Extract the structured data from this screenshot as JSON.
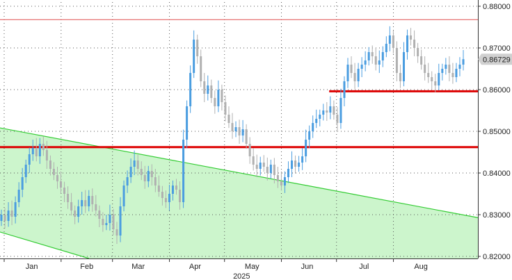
{
  "chart_data": {
    "type": "candlestick",
    "title": "",
    "xlabel": "2025",
    "ylabel": "",
    "ylim": [
      0.82,
      0.88
    ],
    "yticks": [
      "0.82000",
      "0.83000",
      "0.84000",
      "0.85000",
      "0.86000",
      "0.87000",
      "0.88000"
    ],
    "ytick_values": [
      0.82,
      0.83,
      0.84,
      0.85,
      0.86,
      0.87,
      0.88
    ],
    "month_labels": [
      "Jan",
      "Feb",
      "Mar",
      "Apr",
      "May",
      "Jun",
      "Jul",
      "Aug"
    ],
    "last_price": "0.86729",
    "last_price_value": 0.86729,
    "grid": true,
    "colors": {
      "up": "#4a9de0",
      "down": "#b0b0b0",
      "channel": "#33cc33",
      "channel_fill": "#ccf5cc",
      "resistance": "#e05050",
      "support": "#dd0000"
    },
    "levels": [
      {
        "kind": "thin-horizontal",
        "value": 0.8768
      },
      {
        "kind": "thick-horizontal",
        "value": 0.8462
      },
      {
        "kind": "thick-horizontal-partial",
        "value": 0.8596,
        "start_month": "Jun"
      }
    ],
    "channel": {
      "upper": [
        {
          "x": "2024-12-24",
          "y": 0.8513
        },
        {
          "x": "2025-09-05",
          "y": 0.8302
        }
      ],
      "lower": [
        {
          "x": "2024-12-24",
          "y": 0.8266
        },
        {
          "x": "2025-02-20",
          "y": 0.819
        }
      ]
    },
    "series": [
      {
        "values": [
          0.83,
          0.8285,
          0.831,
          0.8295,
          0.833,
          0.836,
          0.839,
          0.842,
          0.8445,
          0.846,
          0.844,
          0.847,
          0.8455,
          0.843,
          0.841,
          0.8395,
          0.838,
          0.8365,
          0.835,
          0.833,
          0.831,
          0.8295,
          0.832,
          0.8335,
          0.832,
          0.8345,
          0.8325,
          0.831,
          0.829,
          0.8275,
          0.828,
          0.83,
          0.8265,
          0.825,
          0.832,
          0.837,
          0.839,
          0.8415,
          0.843,
          0.841,
          0.8395,
          0.838,
          0.8405,
          0.839,
          0.837,
          0.8355,
          0.834,
          0.833,
          0.835,
          0.837,
          0.836,
          0.833,
          0.848,
          0.856,
          0.864,
          0.872,
          0.868,
          0.862,
          0.859,
          0.861,
          0.858,
          0.856,
          0.86,
          0.857,
          0.854,
          0.852,
          0.85,
          0.851,
          0.849,
          0.8505,
          0.847,
          0.844,
          0.842,
          0.841,
          0.8425,
          0.8415,
          0.84,
          0.842,
          0.8395,
          0.838,
          0.837,
          0.839,
          0.841,
          0.843,
          0.8415,
          0.8425,
          0.844,
          0.848,
          0.85,
          0.852,
          0.853,
          0.854,
          0.855,
          0.8545,
          0.856,
          0.854,
          0.852,
          0.858,
          0.862,
          0.866,
          0.864,
          0.862,
          0.865,
          0.866,
          0.867,
          0.869,
          0.868,
          0.866,
          0.867,
          0.869,
          0.871,
          0.873,
          0.87,
          0.864,
          0.862,
          0.869,
          0.873,
          0.872,
          0.87,
          0.868,
          0.866,
          0.864,
          0.863,
          0.862,
          0.861,
          0.864,
          0.865,
          0.866,
          0.864,
          0.863,
          0.865,
          0.866,
          0.8673
        ]
      }
    ]
  }
}
